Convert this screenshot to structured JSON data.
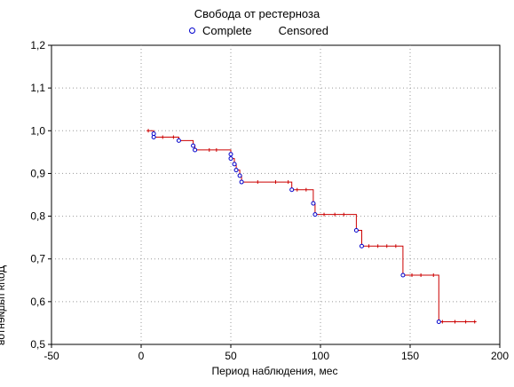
{
  "chart_data": {
    "type": "line",
    "title": "Свобода от рестерноза",
    "xlabel": "Период наблюдения, мес",
    "ylabel": "Доля пациентов",
    "xlim": [
      -50,
      200
    ],
    "ylim": [
      0.5,
      1.2
    ],
    "xticks": [
      "-50",
      "0",
      "50",
      "100",
      "150",
      "200"
    ],
    "yticks": [
      "0,5",
      "0,6",
      "0,7",
      "0,8",
      "0,9",
      "1,0",
      "1,1",
      "1,2"
    ],
    "grid": true,
    "legend_position": "top",
    "series": [
      {
        "name": "Complete",
        "marker": "circle",
        "color": "#0000cc",
        "points": [
          {
            "x": 7,
            "y": 0.993
          },
          {
            "x": 7,
            "y": 0.985
          },
          {
            "x": 21,
            "y": 0.977
          },
          {
            "x": 29,
            "y": 0.965
          },
          {
            "x": 30,
            "y": 0.955
          },
          {
            "x": 50,
            "y": 0.945
          },
          {
            "x": 50,
            "y": 0.935
          },
          {
            "x": 52,
            "y": 0.922
          },
          {
            "x": 53,
            "y": 0.908
          },
          {
            "x": 55,
            "y": 0.895
          },
          {
            "x": 56,
            "y": 0.88
          },
          {
            "x": 84,
            "y": 0.862
          },
          {
            "x": 96,
            "y": 0.83
          },
          {
            "x": 97,
            "y": 0.804
          },
          {
            "x": 120,
            "y": 0.767
          },
          {
            "x": 123,
            "y": 0.73
          },
          {
            "x": 146,
            "y": 0.662
          },
          {
            "x": 166,
            "y": 0.553
          }
        ]
      },
      {
        "name": "Censored",
        "color": "#cc0000",
        "step": [
          [
            3,
            1.0
          ],
          [
            7,
            1.0
          ],
          [
            7,
            0.985
          ],
          [
            21,
            0.985
          ],
          [
            21,
            0.977
          ],
          [
            29,
            0.977
          ],
          [
            29,
            0.965
          ],
          [
            30,
            0.965
          ],
          [
            30,
            0.955
          ],
          [
            50,
            0.955
          ],
          [
            50,
            0.945
          ],
          [
            50,
            0.935
          ],
          [
            52,
            0.935
          ],
          [
            52,
            0.922
          ],
          [
            53,
            0.922
          ],
          [
            53,
            0.908
          ],
          [
            55,
            0.908
          ],
          [
            55,
            0.895
          ],
          [
            56,
            0.895
          ],
          [
            56,
            0.88
          ],
          [
            84,
            0.88
          ],
          [
            84,
            0.862
          ],
          [
            96,
            0.862
          ],
          [
            96,
            0.83
          ],
          [
            97,
            0.83
          ],
          [
            97,
            0.804
          ],
          [
            120,
            0.804
          ],
          [
            120,
            0.767
          ],
          [
            123,
            0.767
          ],
          [
            123,
            0.73
          ],
          [
            146,
            0.73
          ],
          [
            146,
            0.662
          ],
          [
            166,
            0.662
          ],
          [
            166,
            0.553
          ],
          [
            187,
            0.553
          ]
        ],
        "ticks": [
          {
            "x": 4,
            "y": 1.0
          },
          {
            "x": 12,
            "y": 0.985
          },
          {
            "x": 18,
            "y": 0.985
          },
          {
            "x": 38,
            "y": 0.955
          },
          {
            "x": 42,
            "y": 0.955
          },
          {
            "x": 65,
            "y": 0.88
          },
          {
            "x": 75,
            "y": 0.88
          },
          {
            "x": 82,
            "y": 0.88
          },
          {
            "x": 87,
            "y": 0.862
          },
          {
            "x": 92,
            "y": 0.862
          },
          {
            "x": 102,
            "y": 0.804
          },
          {
            "x": 108,
            "y": 0.804
          },
          {
            "x": 113,
            "y": 0.804
          },
          {
            "x": 127,
            "y": 0.73
          },
          {
            "x": 132,
            "y": 0.73
          },
          {
            "x": 137,
            "y": 0.73
          },
          {
            "x": 142,
            "y": 0.73
          },
          {
            "x": 151,
            "y": 0.662
          },
          {
            "x": 156,
            "y": 0.662
          },
          {
            "x": 163,
            "y": 0.662
          },
          {
            "x": 168,
            "y": 0.553
          },
          {
            "x": 175,
            "y": 0.553
          },
          {
            "x": 181,
            "y": 0.553
          },
          {
            "x": 186,
            "y": 0.553
          }
        ]
      }
    ]
  },
  "legend": {
    "complete_label": "Complete",
    "censored_label": "Censored"
  }
}
